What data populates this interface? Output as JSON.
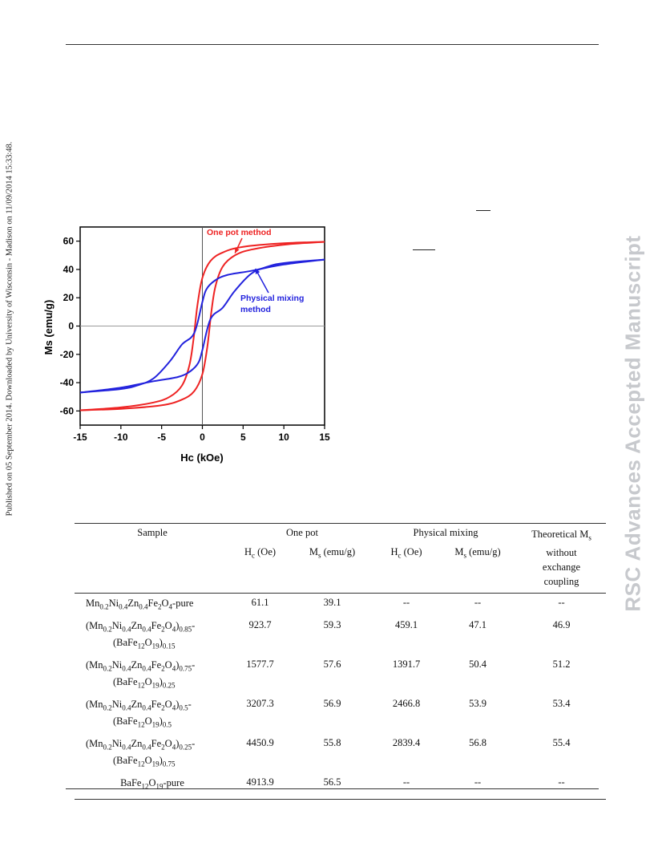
{
  "side_note": "Published on 05 September 2014. Downloaded by University of Wisconsin - Madison on 11/09/2014 15:33:48.",
  "watermark": "RSC Advances Accepted Manuscript",
  "chart_data": {
    "type": "line",
    "xlabel": "Hc (kOe)",
    "ylabel": "Ms (emu/g)",
    "xlim": [
      -15,
      15
    ],
    "ylim": [
      -70,
      70
    ],
    "xticks": [
      -15,
      -10,
      -5,
      0,
      5,
      10,
      15
    ],
    "yticks": [
      -60,
      -40,
      -20,
      0,
      20,
      40,
      60
    ],
    "grid": false,
    "series": [
      {
        "name": "One pot method",
        "color": "#ee2222",
        "upper": [
          [
            -15,
            -59.5
          ],
          [
            -10,
            -57.5
          ],
          [
            -6,
            -54
          ],
          [
            -4,
            -50
          ],
          [
            -2.5,
            -42
          ],
          [
            -1.6,
            -28
          ],
          [
            -1.1,
            -10
          ],
          [
            -0.6,
            15
          ],
          [
            0,
            34
          ],
          [
            1,
            46
          ],
          [
            2.5,
            52
          ],
          [
            5,
            56
          ],
          [
            10,
            58.5
          ],
          [
            15,
            59.5
          ]
        ],
        "lower": [
          [
            -15,
            -59.5
          ],
          [
            -10,
            -58.5
          ],
          [
            -5,
            -56
          ],
          [
            -2.5,
            -52
          ],
          [
            -1,
            -46
          ],
          [
            0,
            -34
          ],
          [
            0.6,
            -15
          ],
          [
            1.1,
            10
          ],
          [
            1.6,
            28
          ],
          [
            2.5,
            42
          ],
          [
            4,
            50
          ],
          [
            6,
            54
          ],
          [
            10,
            57.5
          ],
          [
            15,
            59.5
          ]
        ]
      },
      {
        "name": "Physical mixing method",
        "color": "#2222dd",
        "upper": [
          [
            -15,
            -47
          ],
          [
            -10,
            -44.5
          ],
          [
            -8,
            -42
          ],
          [
            -6,
            -37
          ],
          [
            -4,
            -25
          ],
          [
            -2.5,
            -13
          ],
          [
            -1,
            -5
          ],
          [
            0,
            17
          ],
          [
            0.5,
            26
          ],
          [
            1.5,
            32
          ],
          [
            3,
            36
          ],
          [
            6,
            39
          ],
          [
            10,
            43.5
          ],
          [
            15,
            47
          ]
        ],
        "lower": [
          [
            -15,
            -47
          ],
          [
            -10,
            -43.5
          ],
          [
            -6,
            -39
          ],
          [
            -3,
            -36
          ],
          [
            -1.5,
            -32
          ],
          [
            -0.5,
            -26
          ],
          [
            0,
            -17
          ],
          [
            1,
            5
          ],
          [
            2.5,
            13
          ],
          [
            4,
            25
          ],
          [
            6,
            37
          ],
          [
            8,
            42
          ],
          [
            10,
            44.5
          ],
          [
            15,
            47
          ]
        ]
      }
    ],
    "annotations": [
      {
        "text": "One pot method",
        "color": "#ee2222"
      },
      {
        "text": "Physical mixing",
        "color": "#2222dd"
      },
      {
        "text": "method",
        "color": "#2222dd"
      }
    ]
  },
  "table": {
    "headers": {
      "sample": "Sample",
      "one_pot": "One pot",
      "physical_mixing": "Physical mixing",
      "theoretical_lines": [
        "Theoretical Ms",
        "without",
        "exchange",
        "coupling"
      ],
      "hc": "Hc (Oe)",
      "ms": "Ms (emu/g)"
    },
    "rows": [
      {
        "sample": [
          "Mn0.2Ni0.4Zn0.4Fe2O4-pure"
        ],
        "one_pot_hc": "61.1",
        "one_pot_ms": "39.1",
        "pm_hc": "--",
        "pm_ms": "--",
        "theo": "--"
      },
      {
        "sample": [
          "(Mn0.2Ni0.4Zn0.4Fe2O4)0.85-",
          "(BaFe12O19)0.15"
        ],
        "one_pot_hc": "923.7",
        "one_pot_ms": "59.3",
        "pm_hc": "459.1",
        "pm_ms": "47.1",
        "theo": "46.9"
      },
      {
        "sample": [
          "(Mn0.2Ni0.4Zn0.4Fe2O4)0.75-",
          "(BaFe12O19)0.25"
        ],
        "one_pot_hc": "1577.7",
        "one_pot_ms": "57.6",
        "pm_hc": "1391.7",
        "pm_ms": "50.4",
        "theo": "51.2"
      },
      {
        "sample": [
          "(Mn0.2Ni0.4Zn0.4Fe2O4)0.5-",
          "(BaFe12O19)0.5"
        ],
        "one_pot_hc": "3207.3",
        "one_pot_ms": "56.9",
        "pm_hc": "2466.8",
        "pm_ms": "53.9",
        "theo": "53.4"
      },
      {
        "sample": [
          "(Mn0.2Ni0.4Zn0.4Fe2O4)0.25-",
          "(BaFe12O19)0.75"
        ],
        "one_pot_hc": "4450.9",
        "one_pot_ms": "55.8",
        "pm_hc": "2839.4",
        "pm_ms": "56.8",
        "theo": "55.4"
      },
      {
        "sample": [
          "BaFe12O19-pure"
        ],
        "one_pot_hc": "4913.9",
        "one_pot_ms": "56.5",
        "pm_hc": "--",
        "pm_ms": "--",
        "theo": "--"
      }
    ]
  }
}
